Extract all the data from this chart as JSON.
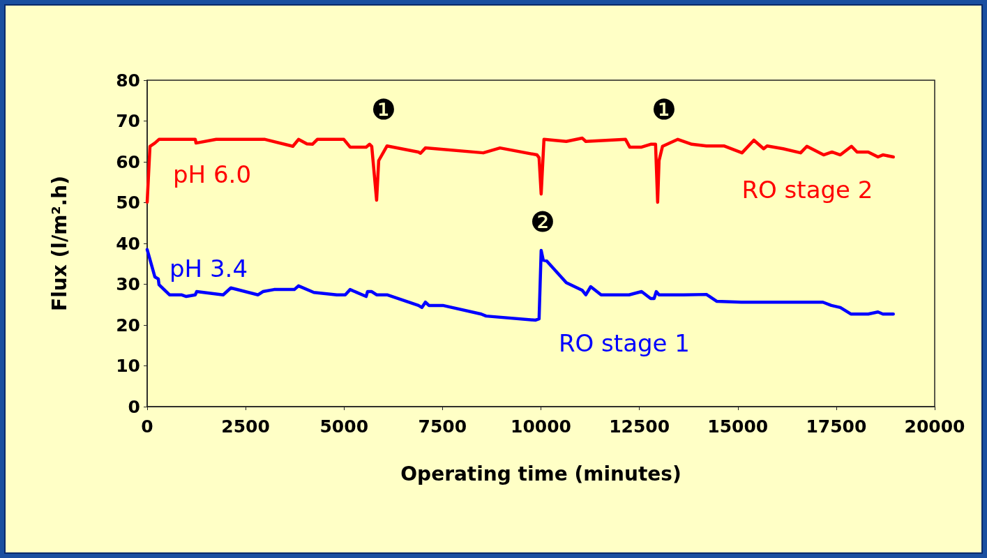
{
  "chart_data": {
    "type": "line",
    "xlabel": "Operating time (minutes)",
    "ylabel": "Flux (l/m².h)",
    "xlim": [
      0,
      20000
    ],
    "xticks": [
      0,
      2500,
      5000,
      7500,
      10000,
      12500,
      15000,
      17500,
      20000
    ],
    "ylim": [
      0,
      80
    ],
    "yticks": [
      0,
      10,
      20,
      30,
      40,
      50,
      60,
      70,
      80
    ],
    "grid": false,
    "legend": false,
    "marker": "none",
    "line_style": "solid",
    "series": [
      {
        "name": "RO stage 2",
        "color": "#ff0000",
        "x": [
          0,
          71,
          195,
          300,
          1222,
          1240,
          1753,
          2993,
          3700,
          3843,
          4056,
          4197,
          4321,
          4994,
          5154,
          5561,
          5649,
          5703,
          5827,
          5880,
          6092,
          6889,
          6942,
          7066,
          8536,
          8961,
          9900,
          9953,
          10006,
          10077,
          10644,
          11051,
          11140,
          12149,
          12255,
          12556,
          12787,
          12911,
          12964,
          13000,
          13088,
          13477,
          13832,
          14203,
          14646,
          15107,
          15408,
          15656,
          15744,
          16152,
          16595,
          16754,
          17179,
          17391,
          17604,
          17887,
          18029,
          18312,
          18560,
          18684,
          18950
        ],
        "values": [
          50.1,
          63.8,
          64.6,
          65.5,
          65.5,
          64.6,
          65.5,
          65.5,
          63.8,
          65.5,
          64.4,
          64.3,
          65.5,
          65.5,
          63.6,
          63.6,
          64.3,
          63.8,
          50.6,
          60.3,
          63.9,
          62.4,
          62.1,
          63.4,
          62.2,
          63.4,
          61.7,
          61,
          52.1,
          65.5,
          65,
          65.8,
          65,
          65.5,
          63.6,
          63.6,
          64.3,
          64.3,
          50.1,
          60.3,
          63.8,
          65.5,
          64.3,
          63.9,
          63.9,
          62.2,
          65.3,
          63.2,
          63.9,
          63.2,
          62.2,
          63.8,
          61.7,
          62.4,
          61.7,
          63.8,
          62.4,
          62.4,
          61.2,
          61.7,
          61.2
        ]
      },
      {
        "name": "RO stage 1",
        "color": "#0000ff",
        "x": [
          0,
          195,
          283,
          300,
          567,
          868,
          992,
          1222,
          1257,
          1930,
          2125,
          2816,
          2940,
          3223,
          3737,
          3843,
          4233,
          4817,
          5030,
          5154,
          5561,
          5596,
          5703,
          5827,
          6092,
          6889,
          6978,
          7066,
          7155,
          7509,
          8483,
          8607,
          9865,
          9953,
          10006,
          10059,
          10148,
          10644,
          11051,
          11140,
          11264,
          11529,
          12237,
          12556,
          12787,
          12875,
          12928,
          13000,
          13619,
          14203,
          14469,
          15089,
          17161,
          17374,
          17604,
          17870,
          18312,
          18560,
          18684,
          18950
        ],
        "values": [
          38.5,
          31.8,
          31.3,
          29.9,
          27.4,
          27.4,
          27,
          27.4,
          28.2,
          27.4,
          29.1,
          27.4,
          28.2,
          28.7,
          28.7,
          29.6,
          28,
          27.4,
          27.4,
          28.7,
          27,
          28.2,
          28.2,
          27.4,
          27.4,
          24.8,
          24.3,
          25.6,
          24.8,
          24.8,
          22.7,
          22.2,
          21.2,
          21.5,
          38.3,
          35.9,
          35.7,
          30.4,
          28.5,
          27.4,
          29.4,
          27.4,
          27.4,
          28.2,
          26.5,
          26.5,
          28.2,
          27.4,
          27.4,
          27.5,
          25.8,
          25.6,
          25.6,
          24.8,
          24.3,
          22.7,
          22.7,
          23.2,
          22.7,
          22.7
        ]
      }
    ],
    "annotations": [
      "pH 6.0",
      "pH 3.4",
      "❶",
      "❶",
      "❷"
    ]
  }
}
